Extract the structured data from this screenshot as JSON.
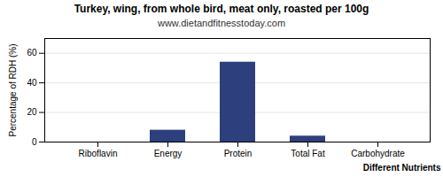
{
  "chart_data": {
    "type": "bar",
    "title": "Turkey, wing, from whole bird, meat only, roasted per 100g",
    "subtitle": "www.dietandfitnesstoday.com",
    "xlabel": "Different Nutrients",
    "ylabel": "Percentage of RDH (%)",
    "categories": [
      "Riboflavin",
      "Energy",
      "Protein",
      "Total Fat",
      "Carbohydrate"
    ],
    "values": [
      0.0,
      8.0,
      54.0,
      4.0,
      0.0
    ],
    "color": "#2d3f7c",
    "ylim": [
      0,
      70
    ],
    "yticks": [
      0,
      20,
      40,
      60
    ],
    "grid": true
  }
}
